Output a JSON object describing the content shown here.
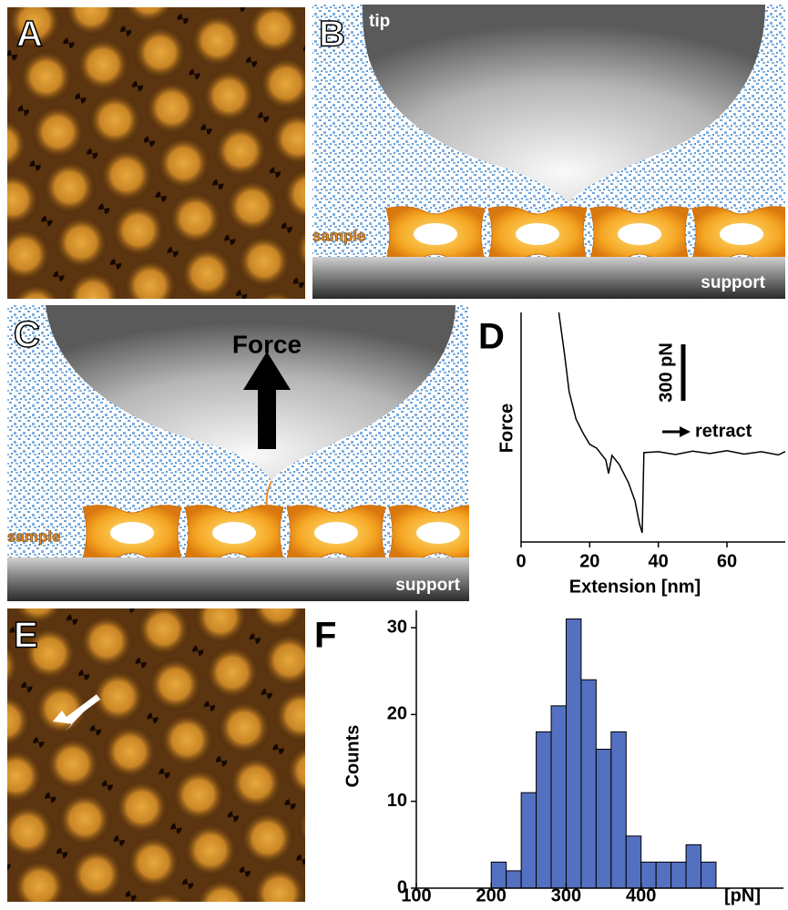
{
  "panels": {
    "labels": [
      "A",
      "B",
      "C",
      "D",
      "E",
      "F"
    ]
  },
  "diagram_b": {
    "tip": "tip",
    "sample": "sample",
    "support": "support"
  },
  "diagram_c": {
    "force": "Force",
    "sample": "sample",
    "support": "support"
  },
  "chart_data": [
    {
      "type": "line",
      "y_label": "Force",
      "x_label": "Extension [nm]",
      "annotation": "retract",
      "scale_bar": {
        "value": 300,
        "label": "300 pN"
      },
      "x": [
        11,
        12.7,
        14,
        16,
        18,
        20,
        22,
        24.7,
        25.5,
        26.5,
        28.6,
        31.3,
        33.2,
        34.5,
        35.3,
        35.8,
        40,
        45,
        50,
        55,
        60,
        65,
        70,
        75,
        77
      ],
      "values": [
        745,
        518,
        324,
        179,
        106,
        44,
        24,
        -39,
        -111,
        -15,
        -63,
        -160,
        -257,
        -378,
        -426,
        0,
        5,
        -10,
        8,
        -5,
        10,
        -8,
        5,
        -12,
        6
      ],
      "color": "#000000",
      "xlim": [
        0,
        77
      ],
      "ylim": [
        -475,
        745
      ],
      "xticks": [
        0,
        20,
        40,
        60
      ]
    },
    {
      "type": "histogram",
      "y_label": "Counts",
      "x_label": "[pN]",
      "bins": [
        200,
        220,
        240,
        260,
        280,
        300,
        320,
        340,
        360,
        380,
        400,
        420,
        440,
        460,
        480,
        500
      ],
      "values": [
        3,
        2,
        11,
        18,
        21,
        31,
        24,
        16,
        18,
        6,
        3,
        3,
        3,
        5,
        3
      ],
      "color": "#5470c0",
      "xlim": [
        100,
        590
      ],
      "ylim": [
        0,
        32
      ],
      "xticks": [
        100,
        200,
        300,
        400
      ],
      "yticks": [
        0,
        10,
        20,
        30
      ]
    }
  ]
}
